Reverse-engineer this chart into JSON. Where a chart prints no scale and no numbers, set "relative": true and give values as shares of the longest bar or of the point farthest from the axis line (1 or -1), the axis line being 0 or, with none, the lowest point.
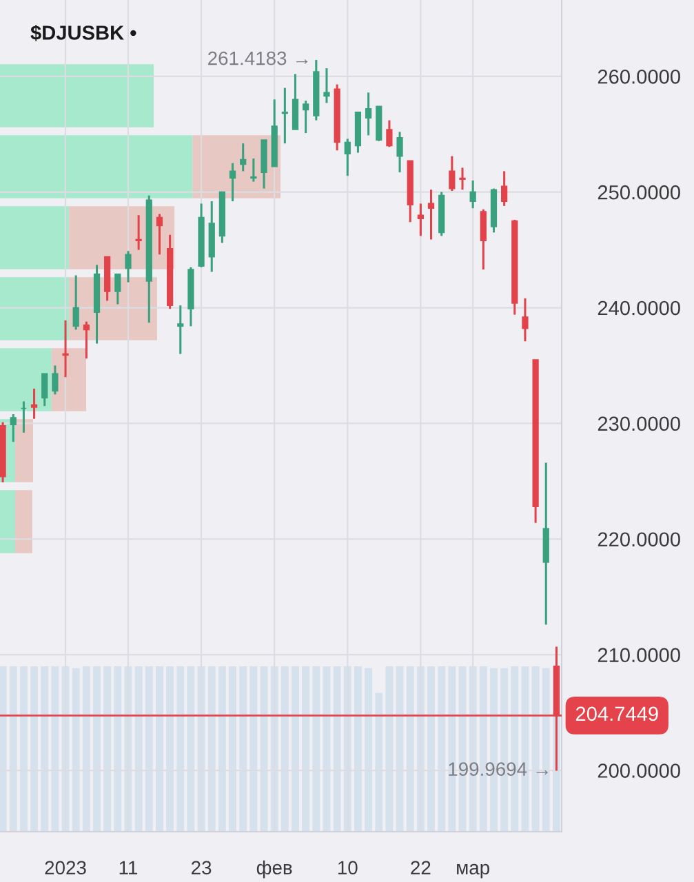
{
  "chart_data": [
    {
      "type": "candlestick",
      "title": "$DJUSBK •",
      "categories": [
        null,
        null,
        null,
        null,
        null,
        null,
        "2023",
        null,
        null,
        null,
        null,
        null,
        "11",
        null,
        null,
        null,
        null,
        null,
        null,
        "23",
        null,
        null,
        null,
        null,
        null,
        null,
        "фев",
        null,
        null,
        null,
        null,
        null,
        null,
        "10",
        null,
        null,
        null,
        null,
        null,
        null,
        "22",
        null,
        null,
        null,
        null,
        "мар",
        null,
        null,
        null,
        null,
        null,
        null,
        null,
        null
      ],
      "ohlc": [
        [
          229.8,
          230.1,
          224.9,
          225.4
        ],
        [
          229.9,
          230.8,
          228.4,
          230.5
        ],
        [
          231.3,
          231.9,
          229.2,
          231.3
        ],
        [
          231.6,
          233.0,
          230.4,
          231.4
        ],
        [
          232.2,
          234.3,
          231.5,
          234.3
        ],
        [
          232.8,
          235.0,
          232.5,
          234.3
        ],
        [
          236.0,
          238.9,
          234.0,
          235.9
        ],
        [
          238.4,
          242.8,
          238.1,
          240.0
        ],
        [
          238.5,
          238.8,
          235.6,
          238.1
        ],
        [
          239.6,
          243.7,
          236.9,
          242.9
        ],
        [
          244.4,
          244.4,
          240.6,
          241.4
        ],
        [
          241.4,
          242.9,
          240.3,
          242.9
        ],
        [
          243.4,
          244.9,
          242.2,
          244.6
        ],
        [
          245.9,
          248.0,
          245.0,
          245.8
        ],
        [
          242.3,
          249.7,
          238.7,
          249.3
        ],
        [
          247.8,
          248.1,
          244.6,
          247.1
        ],
        [
          245.1,
          246.3,
          239.9,
          240.2
        ],
        [
          238.4,
          240.2,
          236.0,
          238.6
        ],
        [
          239.9,
          243.5,
          238.4,
          243.3
        ],
        [
          243.6,
          249.0,
          243.5,
          247.8
        ],
        [
          244.4,
          249.2,
          243.1,
          247.3
        ],
        [
          246.2,
          250.0,
          245.6,
          250.0
        ],
        [
          251.2,
          252.5,
          249.2,
          251.8
        ],
        [
          252.4,
          254.2,
          251.8,
          252.8
        ],
        [
          251.2,
          252.9,
          250.9,
          251.3
        ],
        [
          251.7,
          254.5,
          250.3,
          254.5
        ],
        [
          252.2,
          258.0,
          252.2,
          255.7
        ],
        [
          256.8,
          259.0,
          254.2,
          256.9
        ],
        [
          255.4,
          260.2,
          255.4,
          258.0
        ],
        [
          257.1,
          257.9,
          255.1,
          257.6
        ],
        [
          256.6,
          261.4183,
          256.2,
          260.4
        ],
        [
          258.3,
          260.7,
          257.7,
          258.6
        ],
        [
          258.9,
          259.3,
          253.6,
          254.3
        ],
        [
          253.3,
          254.6,
          251.4,
          254.3
        ],
        [
          254.0,
          256.9,
          253.4,
          256.9
        ],
        [
          256.4,
          258.6,
          254.9,
          257.2
        ],
        [
          254.5,
          257.4,
          254.4,
          257.4
        ],
        [
          255.4,
          256.2,
          253.9,
          254.0
        ],
        [
          253.1,
          255.2,
          251.7,
          254.7
        ],
        [
          252.7,
          252.7,
          247.4,
          248.9
        ],
        [
          248.0,
          249.0,
          246.2,
          247.7
        ],
        [
          249.0,
          250.2,
          245.9,
          248.6
        ],
        [
          246.5,
          250.0,
          246.2,
          249.7
        ],
        [
          251.8,
          253.1,
          250.1,
          250.3
        ],
        [
          251.2,
          252.1,
          250.2,
          251.1
        ],
        [
          249.2,
          251.0,
          248.6,
          250.0
        ],
        [
          248.3,
          248.5,
          243.3,
          245.8
        ],
        [
          247.0,
          250.3,
          246.5,
          250.2
        ],
        [
          250.5,
          251.8,
          248.8,
          249.2
        ],
        [
          247.5,
          247.6,
          239.4,
          240.4
        ],
        [
          239.2,
          240.8,
          237.1,
          238.2
        ],
        [
          235.5,
          235.5,
          221.4,
          222.8
        ],
        [
          218.0,
          226.6,
          212.6,
          220.9
        ],
        [
          209.0,
          210.7,
          199.9694,
          204.7449
        ]
      ],
      "colors": [
        "#e2434b",
        "#3aa17e",
        "#3aa17e",
        "#e2434b",
        "#3aa17e",
        "#3aa17e",
        "#e2434b",
        "#3aa17e",
        "#e2434b",
        "#3aa17e",
        "#e2434b",
        "#3aa17e",
        "#3aa17e",
        "#e2434b",
        "#3aa17e",
        "#e2434b",
        "#e2434b",
        "#3aa17e",
        "#3aa17e",
        "#3aa17e",
        "#3aa17e",
        "#3aa17e",
        "#3aa17e",
        "#3aa17e",
        "#3aa17e",
        "#3aa17e",
        "#3aa17e",
        "#3aa17e",
        "#3aa17e",
        "#3aa17e",
        "#3aa17e",
        "#3aa17e",
        "#e2434b",
        "#3aa17e",
        "#3aa17e",
        "#3aa17e",
        "#3aa17e",
        "#e2434b",
        "#3aa17e",
        "#e2434b",
        "#e2434b",
        "#e2434b",
        "#3aa17e",
        "#e2434b",
        "#e2434b",
        "#3aa17e",
        "#e2434b",
        "#3aa17e",
        "#e2434b",
        "#e2434b",
        "#e2434b",
        "#e2434b",
        "#3aa17e",
        "#e2434b"
      ],
      "ylim": [
        194.7,
        266.6
      ],
      "yticks": [
        {
          "value": 200,
          "label": "200.0000"
        },
        {
          "value": 210,
          "label": "210.0000"
        },
        {
          "value": 220,
          "label": "220.0000"
        },
        {
          "value": 230,
          "label": "230.0000"
        },
        {
          "value": 240,
          "label": "240.0000"
        },
        {
          "value": 250,
          "label": "250.0000"
        },
        {
          "value": 260,
          "label": "260.0000"
        }
      ],
      "grid": true,
      "ref_lines": [
        {
          "axis": "y",
          "value": 204.7449,
          "label": "204.7449",
          "color": "#e5434b"
        }
      ],
      "annotations": [
        "261.4183 →",
        "199.9694 →"
      ]
    },
    {
      "type": "bar",
      "relative": true,
      "color": "#d6e1ee",
      "categories": [
        null,
        null,
        null,
        null,
        null,
        null,
        null,
        null,
        null,
        null,
        null,
        null,
        null,
        null,
        null,
        null,
        null,
        null,
        null,
        null,
        null,
        null,
        null,
        null,
        null,
        null,
        null,
        null,
        null,
        null,
        null,
        null,
        null,
        null,
        null,
        null,
        null,
        null,
        null,
        null,
        null,
        null,
        null,
        null,
        null,
        null,
        null,
        null,
        null,
        null,
        null,
        null,
        null,
        null
      ],
      "values": [
        1,
        1,
        1,
        1,
        1,
        1,
        1,
        0.99,
        1,
        1,
        1,
        1,
        1,
        1,
        1,
        1,
        1,
        1,
        1,
        1,
        1,
        1,
        1,
        1,
        1,
        1,
        1,
        1,
        1,
        1,
        1,
        1,
        1,
        1,
        1,
        0.99,
        0.84,
        1,
        1,
        1,
        1,
        1,
        1,
        1,
        1,
        1,
        1,
        0.99,
        0.99,
        1,
        1,
        1,
        0.99,
        1
      ]
    },
    {
      "type": "bar",
      "orientation": "horizontal",
      "stacked": true,
      "relative": true,
      "categories": [
        null,
        null,
        null,
        null,
        null,
        null,
        null
      ],
      "series": [
        {
          "color": "#a6e9cc",
          "values": [
            0.548,
            0.686,
            0.246,
            0.246,
            0.184,
            0.054,
            0.054
          ]
        },
        {
          "color": "#e8c8c3",
          "values": [
            0,
            0.314,
            0.376,
            0.314,
            0.123,
            0.064,
            0.061
          ]
        }
      ]
    }
  ]
}
